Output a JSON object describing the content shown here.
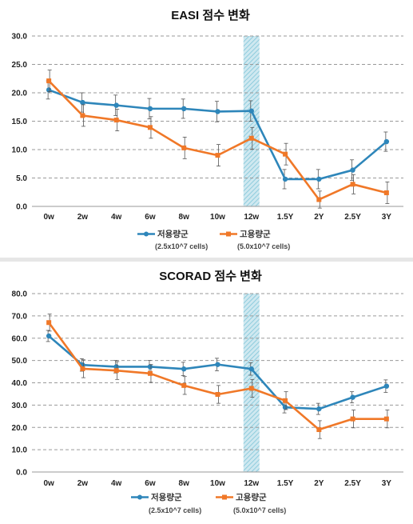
{
  "chart_data": [
    {
      "type": "line",
      "title": "EASI 점수 변화",
      "categories": [
        "0w",
        "2w",
        "4w",
        "6w",
        "8w",
        "10w",
        "12w",
        "1.5Y",
        "2Y",
        "2.5Y",
        "3Y"
      ],
      "ylim": [
        0,
        30
      ],
      "yticks": [
        "0.0",
        "5.0",
        "10.0",
        "15.0",
        "20.0",
        "25.0",
        "30.0"
      ],
      "grid": true,
      "highlight_category": "12w",
      "legend_position": "bottom",
      "series": [
        {
          "name": "저용량군",
          "note": "(2.5x10^7 cells)",
          "color": "#2e86ba",
          "values": [
            20.5,
            18.3,
            17.8,
            17.2,
            17.2,
            16.7,
            16.8,
            4.8,
            4.8,
            6.4,
            11.4
          ],
          "errors": [
            1.6,
            1.7,
            1.8,
            1.8,
            1.7,
            1.8,
            1.8,
            1.7,
            1.7,
            1.8,
            1.7
          ]
        },
        {
          "name": "고용량군",
          "note": "(5.0x10^7 cells)",
          "color": "#f07828",
          "values": [
            22.1,
            16.0,
            15.2,
            13.9,
            10.3,
            9.0,
            12.0,
            9.2,
            1.2,
            3.9,
            2.4
          ],
          "errors": [
            1.9,
            1.9,
            1.9,
            1.9,
            1.9,
            1.9,
            1.9,
            1.9,
            1.5,
            1.7,
            1.9
          ]
        }
      ]
    },
    {
      "type": "line",
      "title": "SCORAD 점수 변화",
      "categories": [
        "0w",
        "2w",
        "4w",
        "6w",
        "8w",
        "10w",
        "12w",
        "1.5Y",
        "2Y",
        "2.5Y",
        "3Y"
      ],
      "ylim": [
        0,
        80
      ],
      "yticks": [
        "0.0",
        "10.0",
        "20.0",
        "30.0",
        "40.0",
        "50.0",
        "60.0",
        "70.0",
        "80.0"
      ],
      "grid": true,
      "highlight_category": "12w",
      "legend_position": "bottom",
      "series": [
        {
          "name": "저용량군",
          "note": "(2.5x10^7 cells)",
          "color": "#2e86ba",
          "values": [
            61.0,
            48.0,
            47.2,
            47.2,
            46.2,
            48.2,
            46.2,
            29.0,
            28.3,
            33.5,
            38.5
          ],
          "errors": [
            2.5,
            2.8,
            2.8,
            2.8,
            3.0,
            2.8,
            2.8,
            2.5,
            2.5,
            2.5,
            2.8
          ]
        },
        {
          "name": "고용량군",
          "note": "(5.0x10^7 cells)",
          "color": "#f07828",
          "values": [
            67.0,
            46.3,
            45.5,
            44.2,
            38.8,
            34.8,
            37.5,
            32.0,
            19.0,
            23.8,
            23.8
          ],
          "errors": [
            3.8,
            4.0,
            4.0,
            4.0,
            4.0,
            4.0,
            4.0,
            4.0,
            4.0,
            4.0,
            4.0
          ]
        }
      ]
    }
  ]
}
